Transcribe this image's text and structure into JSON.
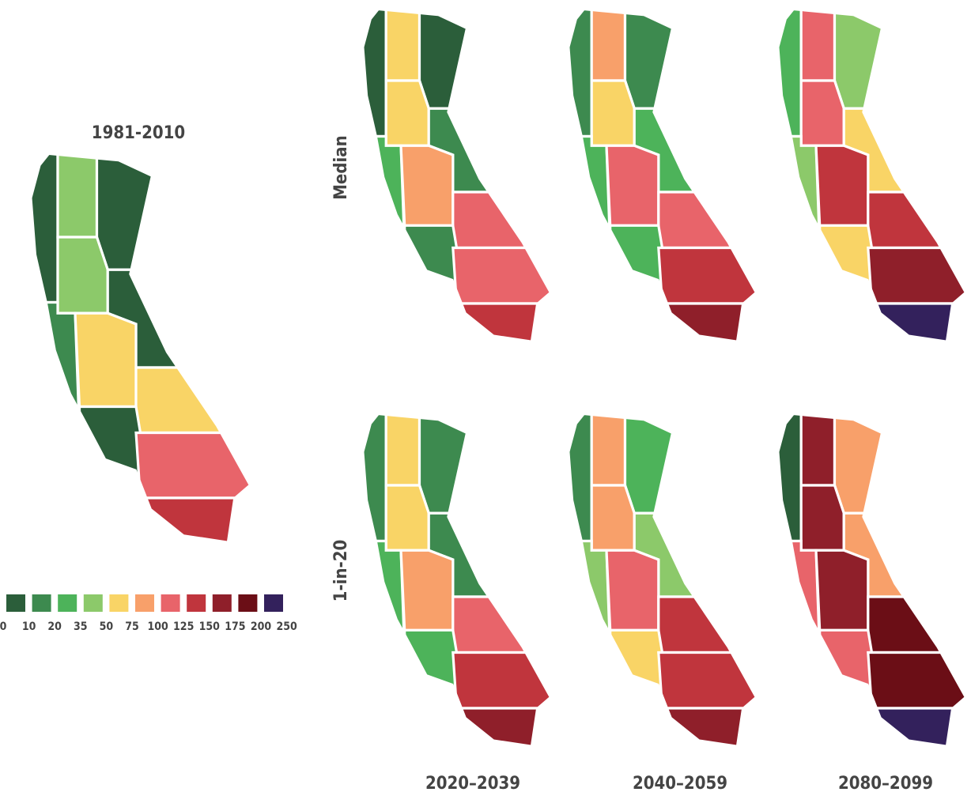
{
  "map_figure": {
    "baseline": {
      "title": "1981-2010",
      "regions": [
        0,
        3,
        0,
        3,
        0,
        1,
        4,
        4,
        0,
        6,
        7
      ]
    },
    "rows": [
      {
        "label": "Median"
      },
      {
        "label": "1-in-20"
      }
    ],
    "columns": [
      "2020–2039",
      "2040–2059",
      "2080–2099"
    ],
    "panels": [
      [
        {
          "regions": [
            0,
            4,
            0,
            4,
            1,
            2,
            5,
            6,
            1,
            6,
            7
          ]
        },
        {
          "regions": [
            1,
            5,
            1,
            4,
            2,
            2,
            6,
            6,
            2,
            7,
            8
          ]
        },
        {
          "regions": [
            2,
            6,
            3,
            6,
            4,
            3,
            7,
            7,
            4,
            8,
            10
          ]
        }
      ],
      [
        {
          "regions": [
            1,
            4,
            1,
            4,
            1,
            2,
            5,
            6,
            2,
            7,
            8
          ]
        },
        {
          "regions": [
            1,
            5,
            2,
            5,
            3,
            3,
            6,
            7,
            4,
            7,
            8
          ]
        },
        {
          "regions": [
            0,
            8,
            5,
            8,
            5,
            6,
            8,
            9,
            6,
            9,
            10
          ]
        }
      ]
    ],
    "legend": {
      "colors": [
        "#2b5e3a",
        "#3d8a4f",
        "#4db35a",
        "#8cc96a",
        "#f9d466",
        "#f8a06a",
        "#e8646a",
        "#c0353d",
        "#8f1f2a",
        "#6b0e16",
        "#33215c"
      ],
      "labels": [
        0,
        10,
        20,
        35,
        50,
        75,
        100,
        125,
        150,
        175,
        200,
        250
      ]
    }
  }
}
